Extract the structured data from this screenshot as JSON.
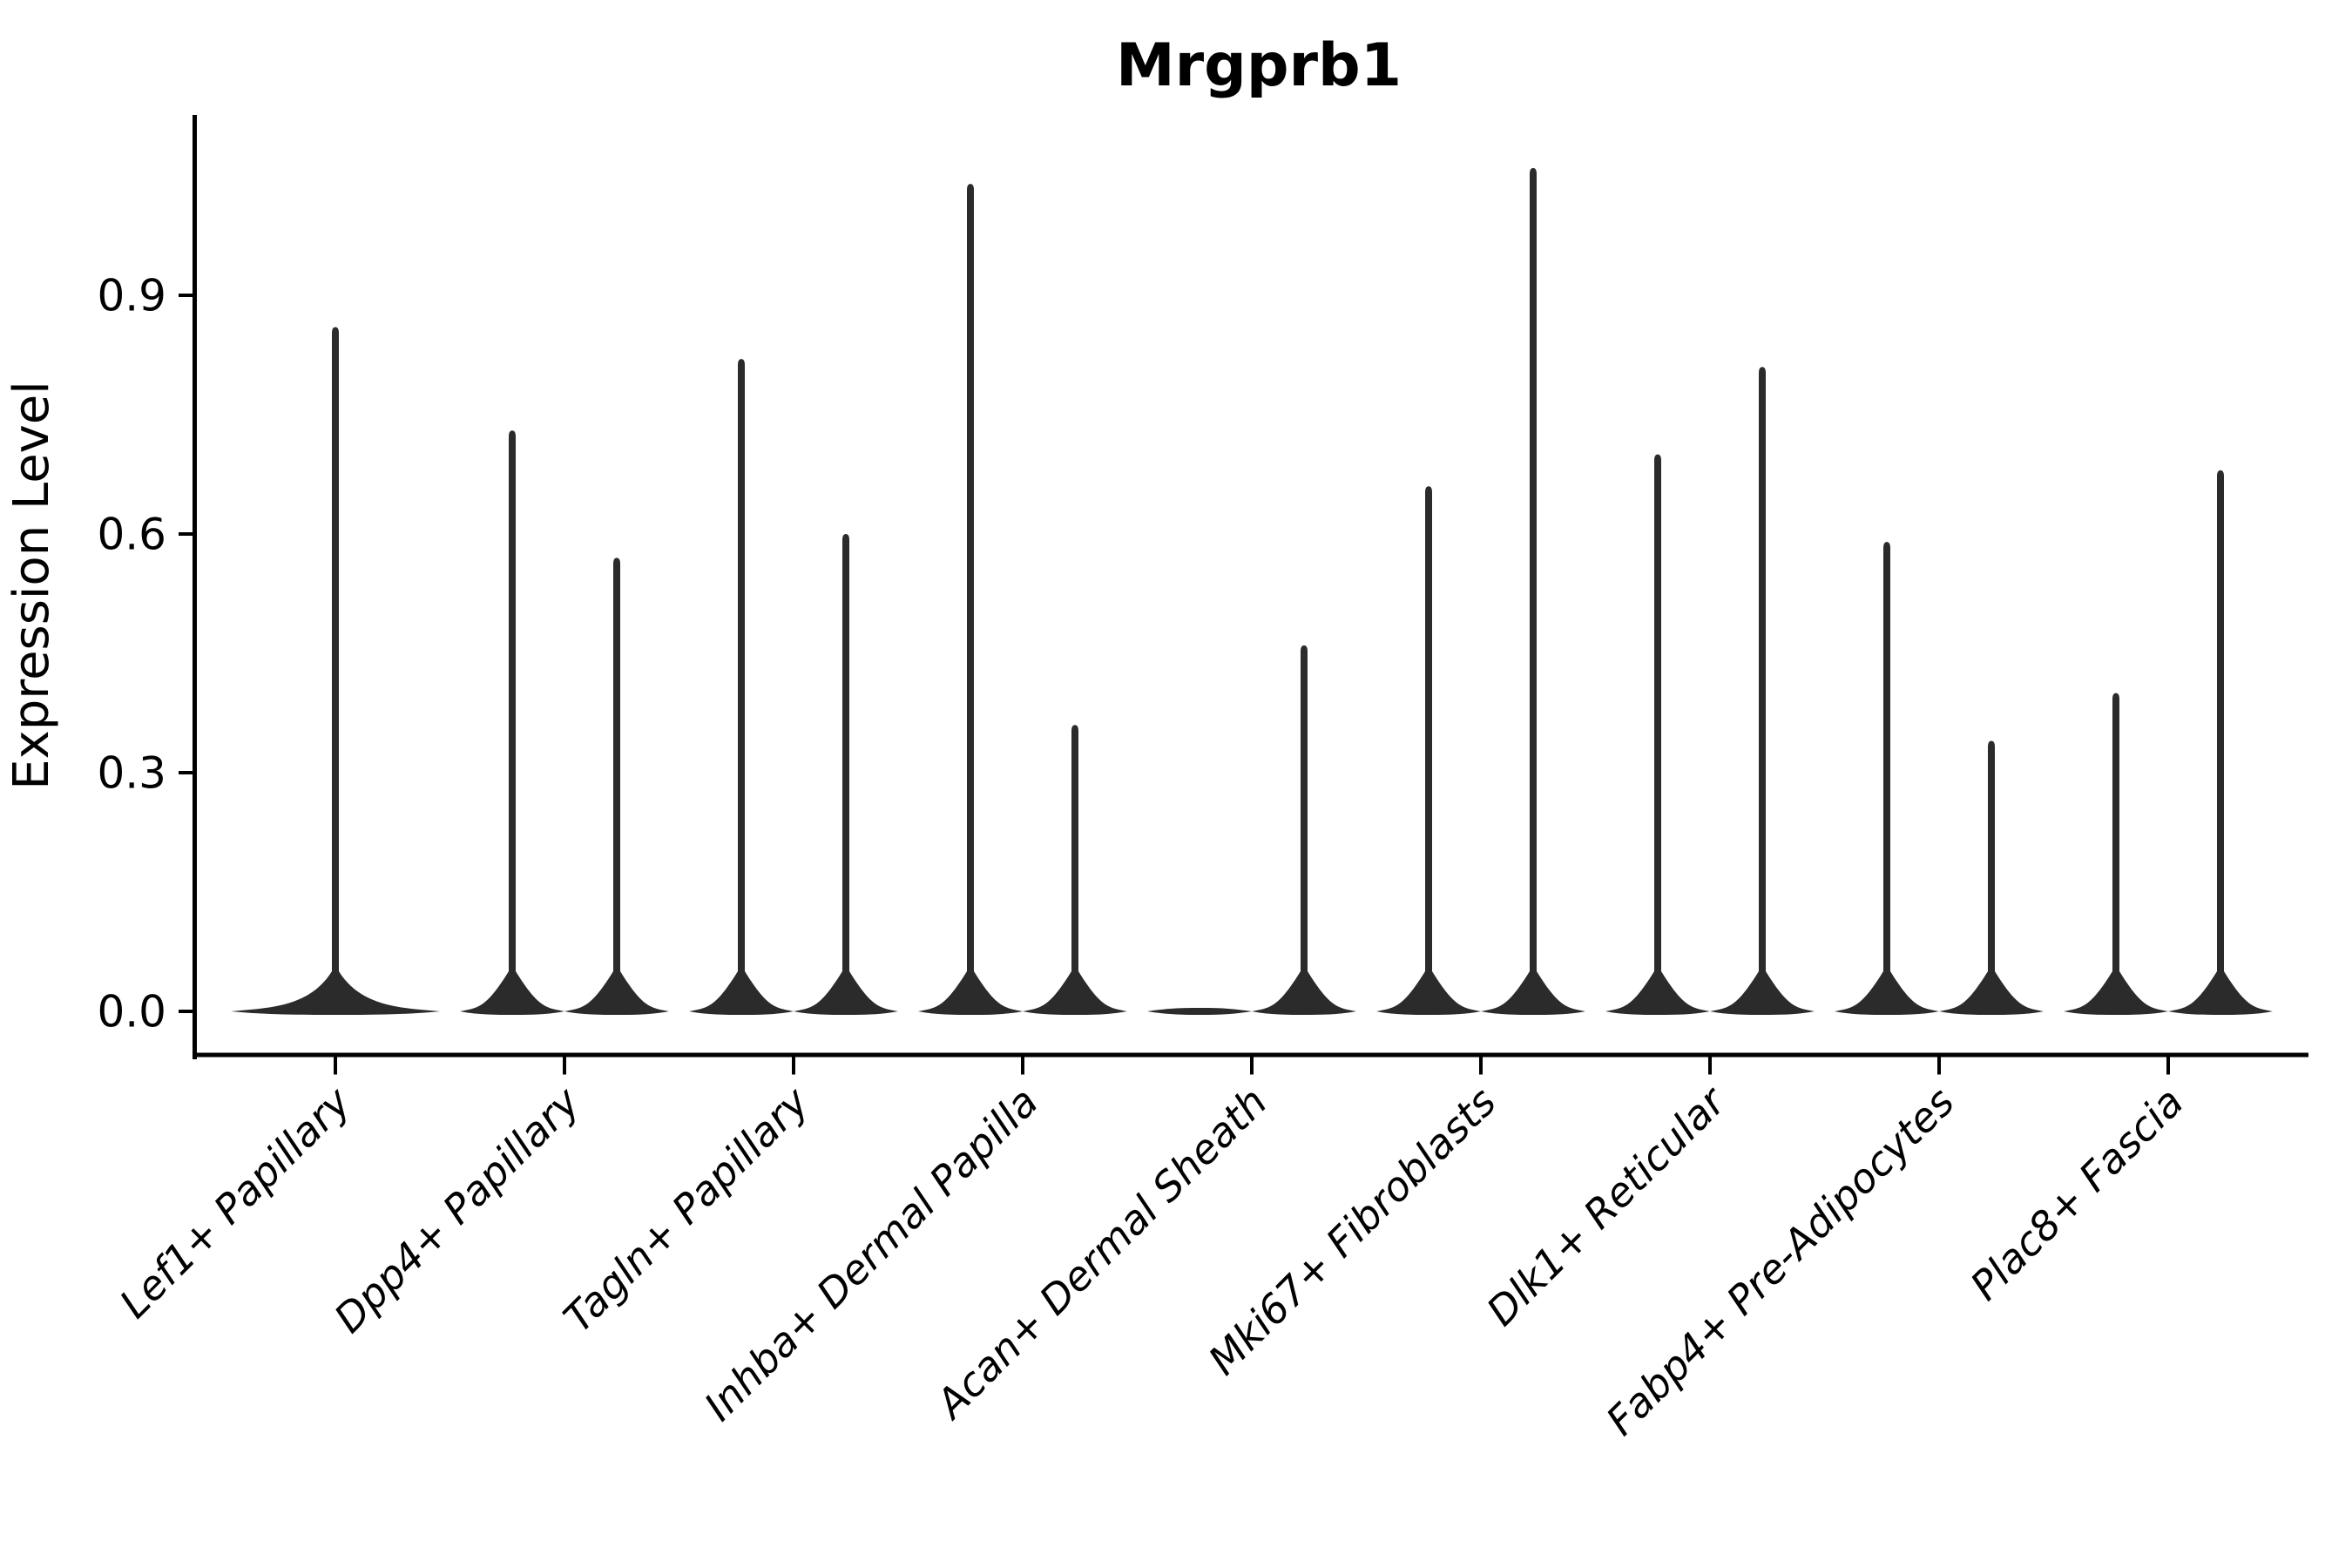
{
  "chart_data": {
    "type": "violin",
    "title": "Mrgprb1",
    "ylabel": "Expression Level",
    "xlabel": "",
    "background": "#ffffff",
    "grid": false,
    "legend": "none",
    "ylim": [
      -0.053,
      1.127
    ],
    "yticks": [
      0.0,
      0.3,
      0.6,
      0.9
    ],
    "ytick_labels": [
      "0.0",
      "0.3",
      "0.6",
      "0.9"
    ],
    "categories": [
      "Lef1+ Papillary",
      "Dpp4+ Papillary",
      "Tagln+ Papillary",
      "Inhba+ Dermal Papilla",
      "Acan+ Dermal Sheath",
      "Mki67+ Fibroblasts",
      "Dlk1+ Reticular",
      "Fabp4+ Pre-Adipocytes",
      "Plac8+ Fascia"
    ],
    "description": "Split violin plot: up to two dodged violins per category; expression mass concentrated at 0 so each violin renders as a wide flat base at 0 with a thin spike up to the group maximum.",
    "violins": [
      {
        "category": "Lef1+ Papillary",
        "groups": [
          {
            "position": "center",
            "max": 0.86
          }
        ]
      },
      {
        "category": "Dpp4+ Papillary",
        "groups": [
          {
            "position": "left",
            "max": 0.73
          },
          {
            "position": "right",
            "max": 0.57
          }
        ]
      },
      {
        "category": "Tagln+ Papillary",
        "groups": [
          {
            "position": "left",
            "max": 0.82
          },
          {
            "position": "right",
            "max": 0.6
          }
        ]
      },
      {
        "category": "Inhba+ Dermal Papilla",
        "groups": [
          {
            "position": "left",
            "max": 1.04
          },
          {
            "position": "right",
            "max": 0.36
          }
        ]
      },
      {
        "category": "Acan+ Dermal Sheath",
        "groups": [
          {
            "position": "left",
            "max": 0.0
          },
          {
            "position": "right",
            "max": 0.46
          }
        ]
      },
      {
        "category": "Mki67+ Fibroblasts",
        "groups": [
          {
            "position": "left",
            "max": 0.66
          },
          {
            "position": "right",
            "max": 1.06
          }
        ]
      },
      {
        "category": "Dlk1+ Reticular",
        "groups": [
          {
            "position": "left",
            "max": 0.7
          },
          {
            "position": "right",
            "max": 0.81
          }
        ]
      },
      {
        "category": "Fabp4+ Pre-Adipocytes",
        "groups": [
          {
            "position": "left",
            "max": 0.59
          },
          {
            "position": "right",
            "max": 0.34
          }
        ]
      },
      {
        "category": "Plac8+ Fascia",
        "groups": [
          {
            "position": "left",
            "max": 0.4
          },
          {
            "position": "right",
            "max": 0.68
          }
        ]
      }
    ],
    "colors": {
      "violin": "#2b2b2b",
      "axis": "#000000",
      "text": "#000000"
    }
  }
}
